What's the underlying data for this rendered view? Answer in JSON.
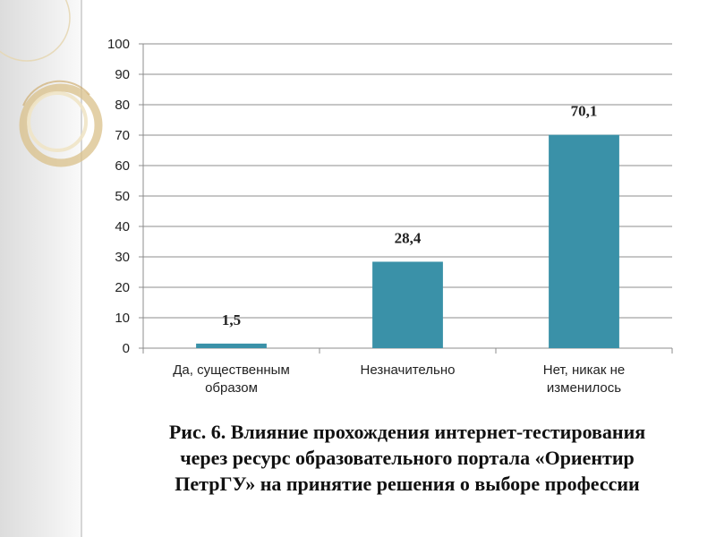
{
  "chart_data": {
    "type": "bar",
    "categories": [
      [
        "Да, существенным",
        "образом"
      ],
      [
        "Незначительно"
      ],
      [
        "Нет, никак не",
        "изменилось"
      ]
    ],
    "values": [
      1.5,
      28.4,
      70.1
    ],
    "data_labels": [
      "1,5",
      "28,4",
      "70,1"
    ],
    "ylim": [
      0,
      100
    ],
    "yticks": [
      0,
      10,
      20,
      30,
      40,
      50,
      60,
      70,
      80,
      90,
      100
    ],
    "grid": true,
    "bar_color": "#3a91a8",
    "grid_color": "#8c8c8c"
  },
  "caption": {
    "lines": [
      "Рис. 6. Влияние прохождения интернет-тестирования",
      "через ресурс образовательного портала «Ориентир",
      "ПетрГУ» на принятие решения о выборе профессии"
    ]
  },
  "decor": {
    "ring_color": "#d9c089"
  }
}
